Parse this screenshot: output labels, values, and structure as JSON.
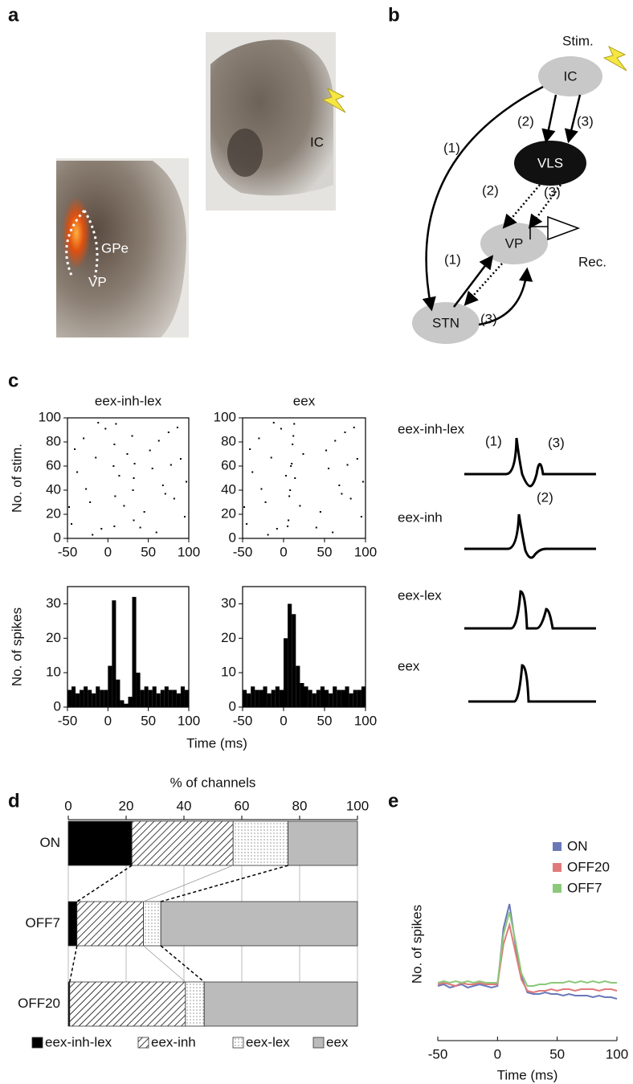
{
  "panel_labels": [
    "a",
    "b",
    "c",
    "d",
    "e"
  ],
  "histology": {
    "labels": [
      "IC",
      "GPe",
      "VP"
    ]
  },
  "circuit": {
    "nodes": [
      "Stim.",
      "IC",
      "VLS",
      "VP",
      "STN",
      "Rec."
    ],
    "pathway_labels": [
      "(1)",
      "(2)",
      "(3)",
      "(2)",
      "(3)",
      "(1)",
      "(3)"
    ]
  },
  "schematic": {
    "labels": [
      "eex-inh-lex",
      "eex-inh",
      "eex-lex",
      "eex"
    ],
    "components": [
      "(1)",
      "(2)",
      "(3)"
    ]
  },
  "chart_data": [
    {
      "type": "scatter",
      "title": "eex-inh-lex",
      "y_label": "No. of stim.",
      "x": [
        -45,
        -38,
        -30,
        -22,
        -15,
        -8,
        -3,
        8,
        9,
        7,
        8,
        10,
        32,
        31,
        33,
        30,
        32,
        45,
        52,
        60,
        68,
        75,
        82,
        90,
        95,
        -41,
        -27,
        -12,
        14,
        20,
        40,
        55,
        63,
        71,
        86,
        97,
        -48,
        -19,
        24,
        78
      ],
      "y": [
        12,
        55,
        83,
        30,
        67,
        8,
        91,
        10,
        35,
        60,
        78,
        95,
        15,
        40,
        62,
        85,
        50,
        22,
        73,
        5,
        44,
        88,
        33,
        66,
        18,
        74,
        41,
        96,
        52,
        27,
        9,
        58,
        81,
        37,
        92,
        47,
        26,
        3,
        70,
        61
      ],
      "xlim": [
        -50,
        100
      ],
      "xticks": [
        -50,
        0,
        50,
        100
      ],
      "ylim": [
        0,
        100
      ],
      "yticks": [
        0,
        20,
        40,
        60,
        80,
        100
      ]
    },
    {
      "type": "scatter",
      "title": "eex",
      "x": [
        -45,
        -38,
        -30,
        -22,
        -15,
        -8,
        -3,
        5,
        7,
        9,
        11,
        13,
        6,
        8,
        10,
        12,
        14,
        45,
        52,
        60,
        68,
        75,
        82,
        90,
        95,
        -41,
        -27,
        -12,
        3,
        20,
        40,
        55,
        63,
        71,
        86,
        97,
        -48,
        -19,
        24,
        78
      ],
      "y": [
        12,
        55,
        83,
        30,
        67,
        8,
        91,
        10,
        35,
        60,
        78,
        95,
        15,
        40,
        62,
        85,
        50,
        22,
        73,
        5,
        44,
        88,
        33,
        66,
        18,
        74,
        41,
        96,
        52,
        27,
        9,
        58,
        81,
        37,
        92,
        47,
        26,
        3,
        70,
        61
      ],
      "xlim": [
        -50,
        100
      ],
      "xticks": [
        -50,
        0,
        50,
        100
      ],
      "ylim": [
        0,
        100
      ],
      "yticks": [
        0,
        20,
        40,
        60,
        80,
        100
      ]
    },
    {
      "type": "histogram",
      "y_label": "No. of spikes",
      "x_label": "Time (ms)",
      "bins": [
        -50,
        -45,
        -40,
        -35,
        -30,
        -25,
        -20,
        -15,
        -10,
        -5,
        0,
        5,
        10,
        15,
        20,
        25,
        30,
        35,
        40,
        45,
        50,
        55,
        60,
        65,
        70,
        75,
        80,
        85,
        90,
        95,
        100
      ],
      "counts": [
        5,
        6,
        4,
        5,
        6,
        5,
        4,
        6,
        5,
        5,
        12,
        31,
        8,
        2,
        1,
        3,
        32,
        10,
        5,
        6,
        5,
        6,
        4,
        5,
        6,
        5,
        5,
        4,
        6,
        5
      ],
      "xlim": [
        -50,
        100
      ],
      "xticks": [
        -50,
        0,
        50,
        100
      ],
      "ylim": [
        0,
        35
      ],
      "yticks": [
        0,
        10,
        20,
        30
      ]
    },
    {
      "type": "histogram",
      "bins": [
        -50,
        -45,
        -40,
        -35,
        -30,
        -25,
        -20,
        -15,
        -10,
        -5,
        0,
        5,
        10,
        15,
        20,
        25,
        30,
        35,
        40,
        45,
        50,
        55,
        60,
        65,
        70,
        75,
        80,
        85,
        90,
        95,
        100
      ],
      "counts": [
        5,
        4,
        6,
        5,
        5,
        6,
        4,
        5,
        6,
        5,
        20,
        30,
        27,
        12,
        7,
        6,
        5,
        4,
        5,
        6,
        5,
        4,
        6,
        5,
        5,
        6,
        4,
        5,
        5,
        6
      ],
      "xlim": [
        -50,
        100
      ],
      "xticks": [
        -50,
        0,
        50,
        100
      ],
      "ylim": [
        0,
        35
      ],
      "yticks": [
        0,
        10,
        20,
        30
      ]
    },
    {
      "type": "stacked_barh",
      "x_label": "% of channels",
      "categories": [
        "ON",
        "OFF7",
        "OFF20"
      ],
      "series": [
        {
          "name": "eex-inh-lex",
          "color": "#000000",
          "pattern": "solid",
          "values": [
            22,
            3,
            0.5
          ]
        },
        {
          "name": "eex-inh",
          "color": "#000000",
          "pattern": "hatch",
          "values": [
            35,
            23,
            40
          ]
        },
        {
          "name": "eex-lex",
          "color": "#888888",
          "pattern": "dots",
          "values": [
            19,
            6,
            6.5
          ]
        },
        {
          "name": "eex",
          "color": "#bbbbbb",
          "pattern": "solid",
          "values": [
            24,
            68,
            53
          ]
        }
      ],
      "xlim": [
        0,
        100
      ],
      "xticks": [
        0,
        20,
        40,
        60,
        80,
        100
      ],
      "grid": true
    },
    {
      "type": "line",
      "x_label": "Time (ms)",
      "y_label": "No. of spikes",
      "x": [
        -50,
        -45,
        -40,
        -35,
        -30,
        -25,
        -20,
        -15,
        -10,
        -5,
        0,
        5,
        10,
        15,
        20,
        25,
        30,
        35,
        40,
        45,
        50,
        55,
        60,
        65,
        70,
        75,
        80,
        85,
        90,
        95,
        100
      ],
      "series": [
        {
          "name": "ON",
          "color": "#6a78b8",
          "values": [
            3.4,
            3.5,
            3.3,
            3.4,
            3.5,
            3.3,
            3.4,
            3.5,
            3.4,
            3.3,
            3.4,
            7.0,
            8.5,
            6.0,
            4.0,
            3.0,
            2.9,
            2.9,
            3.0,
            2.9,
            2.9,
            2.8,
            2.9,
            2.8,
            2.8,
            2.8,
            2.7,
            2.8,
            2.7,
            2.7,
            2.6
          ]
        },
        {
          "name": "OFF20",
          "color": "#e07a7a",
          "values": [
            3.5,
            3.6,
            3.5,
            3.4,
            3.6,
            3.5,
            3.5,
            3.6,
            3.5,
            3.5,
            3.5,
            6.0,
            7.2,
            5.5,
            3.8,
            3.1,
            3.0,
            3.1,
            3.1,
            3.2,
            3.1,
            3.2,
            3.2,
            3.1,
            3.2,
            3.2,
            3.2,
            3.1,
            3.2,
            3.2,
            3.1
          ]
        },
        {
          "name": "OFF7",
          "color": "#8cc97a",
          "values": [
            3.6,
            3.7,
            3.6,
            3.7,
            3.6,
            3.7,
            3.6,
            3.7,
            3.6,
            3.6,
            3.6,
            6.6,
            8.0,
            6.2,
            4.2,
            3.4,
            3.4,
            3.5,
            3.5,
            3.6,
            3.6,
            3.6,
            3.7,
            3.6,
            3.7,
            3.6,
            3.7,
            3.6,
            3.7,
            3.6,
            3.6
          ]
        }
      ],
      "xlim": [
        -50,
        100
      ],
      "xticks": [
        -50,
        0,
        50,
        100
      ],
      "ylim": [
        0,
        10
      ]
    }
  ]
}
